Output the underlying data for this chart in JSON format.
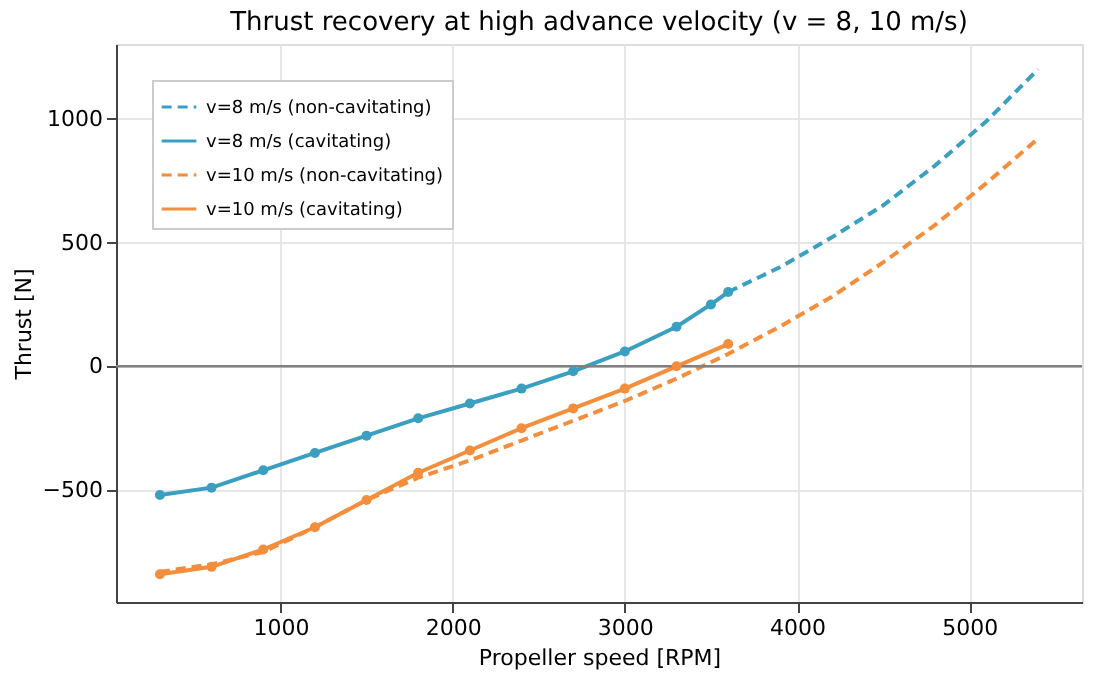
{
  "chart_data": {
    "type": "line",
    "title": "Thrust recovery at high advance velocity (v = 8, 10 m/s)",
    "xlabel": "Propeller speed [RPM]",
    "ylabel": "Thrust [N]",
    "xlim": [
      45,
      5655
    ],
    "xticks": [
      1000,
      2000,
      3000,
      4000,
      5000
    ],
    "ylim": [
      -952,
      1302
    ],
    "yticks": [
      -500,
      0,
      500,
      1000
    ],
    "grid": true,
    "legend": "top left",
    "ref_lines": [
      {
        "axis": "y",
        "value": 0,
        "color": "#808080"
      }
    ],
    "series": [
      {
        "name": "v=8 m/s (non-cavitating)",
        "color": "#3a9fc0",
        "line_style": "dashed",
        "marker": "none",
        "x": [
          3600,
          3900,
          4200,
          4500,
          4800,
          5100,
          5400
        ],
        "values": [
          300,
          400,
          520,
          650,
          810,
          990,
          1200
        ]
      },
      {
        "name": "v=8 m/s (cavitating)",
        "color": "#3a9fc0",
        "line_style": "solid",
        "marker": "circle",
        "x": [
          300,
          600,
          900,
          1200,
          1500,
          1800,
          2100,
          2400,
          2700,
          3000,
          3300,
          3500,
          3600
        ],
        "values": [
          -520,
          -490,
          -420,
          -350,
          -280,
          -210,
          -150,
          -90,
          -20,
          60,
          160,
          250,
          300
        ]
      },
      {
        "name": "v=10 m/s (non-cavitating)",
        "color": "#f28e3c",
        "line_style": "dashed",
        "marker": "none",
        "x": [
          300,
          600,
          900,
          1200,
          1500,
          1800,
          2100,
          2400,
          2700,
          3000,
          3300,
          3600,
          3900,
          4200,
          4500,
          4800,
          5100,
          5400
        ],
        "values": [
          -830,
          -800,
          -750,
          -650,
          -540,
          -450,
          -380,
          -300,
          -220,
          -140,
          -50,
          50,
          160,
          280,
          420,
          570,
          740,
          920
        ]
      },
      {
        "name": "v=10 m/s (cavitating)",
        "color": "#f28e3c",
        "line_style": "solid",
        "marker": "circle",
        "x": [
          300,
          600,
          900,
          1200,
          1500,
          1800,
          2100,
          2400,
          2700,
          3000,
          3300,
          3600
        ],
        "values": [
          -840,
          -810,
          -740,
          -650,
          -540,
          -430,
          -340,
          -250,
          -170,
          -90,
          0,
          90
        ]
      }
    ]
  }
}
